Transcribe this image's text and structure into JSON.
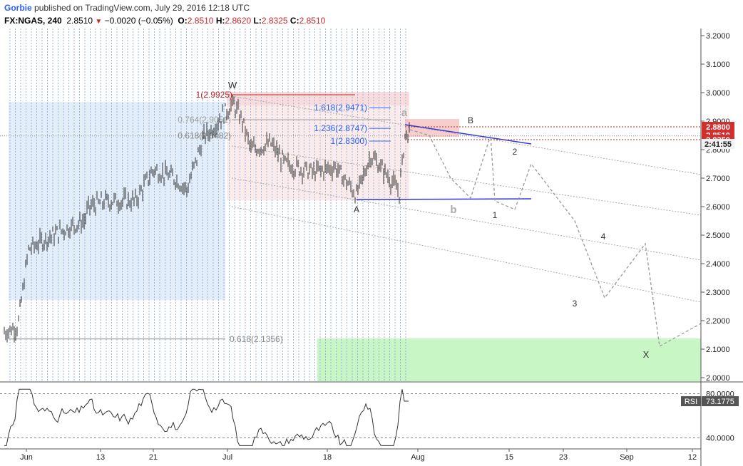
{
  "header": {
    "author": "Gorbie",
    "published": "published on TradingView.com, July 29, 2016 12:18 UTC",
    "symbol": "FX:NGAS, 240",
    "last": "2.8510",
    "change": "−0.0020 (−0.05%)",
    "open_label": "O:",
    "open": "2.8510",
    "high_label": "H:",
    "high": "2.8620",
    "low_label": "L:",
    "low": "2.8325",
    "close_label": "C:",
    "close": "2.8510"
  },
  "colors": {
    "bars": "#333333",
    "fib_red": "#c62828",
    "fib_blue": "#2962ff",
    "fib_gray": "#9e9e9e",
    "trend_blue": "#2f3ad8",
    "green_zone": "#c8f7c5",
    "blue_zone": "#e3eef8",
    "pink_zone": "#fbe4e4",
    "vgrid": "#7fa6e0"
  },
  "chart_data": [
    {
      "type": "line",
      "title": "",
      "x": [
        "Jun",
        "13",
        "21",
        "Jul",
        "18",
        "Aug",
        "15",
        "23",
        "Sep",
        "12"
      ],
      "ylim": [
        1.97,
        3.22
      ],
      "y_ticks": [
        "3.2000",
        "3.1000",
        "3.0000",
        "2.9000",
        "2.8000",
        "2.7000",
        "2.6000",
        "2.5000",
        "2.4000",
        "2.3000",
        "2.2000",
        "2.1000",
        "2.0000"
      ],
      "price_labels": [
        "2.8800",
        "2.8510",
        "2.8350",
        "2:41:55"
      ],
      "fib_levels": [
        {
          "label": "1(2.9925)",
          "value": 2.9925
        },
        {
          "label": "1.618(2.9471)",
          "value": 2.9471
        },
        {
          "label": "0.764(2.9051)",
          "value": 2.9051
        },
        {
          "label": "1.236(2.8747)",
          "value": 2.8747
        },
        {
          "label": "0.618(2.8482)",
          "value": 2.8482
        },
        {
          "label": "1(2.8300)",
          "value": 2.83
        },
        {
          "label": "0.618(2.1356)",
          "value": 2.1356
        }
      ],
      "wave_labels": [
        "W",
        "A",
        "a",
        "B",
        "b",
        "2",
        "1",
        "4",
        "3",
        "X"
      ],
      "projection_path": [
        2.85,
        2.7,
        2.63,
        2.85,
        2.62,
        2.59,
        2.75,
        2.55,
        2.28,
        2.47,
        2.11,
        2.19
      ],
      "grid": false
    },
    {
      "type": "line",
      "title": "",
      "series": [
        {
          "name": "RSI",
          "last_label": "73.1775"
        }
      ],
      "ylim": [
        30,
        90
      ],
      "y_ticks": [
        "80.0000",
        "40.0000"
      ],
      "rsi_label": "RSI",
      "rsi_value": "73.1775"
    }
  ]
}
